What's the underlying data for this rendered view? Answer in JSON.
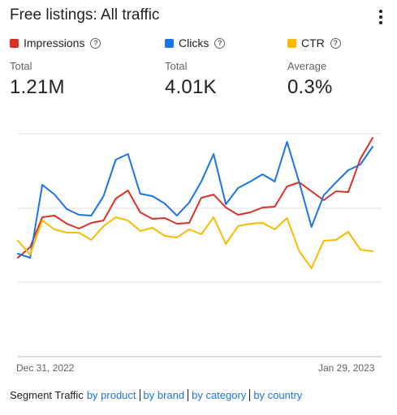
{
  "header": {
    "title": "Free listings: All traffic"
  },
  "metrics": [
    {
      "label": "Impressions",
      "sub": "Total",
      "value": "1.21M",
      "color": "#d93025"
    },
    {
      "label": "Clicks",
      "sub": "Total",
      "value": "4.01K",
      "color": "#1a73e8"
    },
    {
      "label": "CTR",
      "sub": "Average",
      "value": "0.3%",
      "color": "#f9ba00"
    }
  ],
  "chart_data": {
    "type": "line",
    "x_start_label": "Dec 31, 2022",
    "x_end_label": "Jan 29, 2023",
    "grid": true,
    "colors": {
      "impressions": "#d93025",
      "clicks": "#1a73e8",
      "ctr": "#f9ba00"
    },
    "series": [
      {
        "key": "impressions",
        "values": [
          318,
          305,
          268,
          266,
          276,
          282,
          275,
          272,
          245,
          235,
          262,
          270,
          269,
          276,
          275,
          244,
          240,
          256,
          265,
          262,
          256,
          255,
          230,
          225,
          236,
          247,
          236,
          237,
          196,
          170
        ]
      },
      {
        "key": "clicks",
        "values": [
          313,
          318,
          228,
          240,
          258,
          265,
          266,
          242,
          197,
          190,
          239,
          242,
          251,
          266,
          250,
          224,
          190,
          252,
          232,
          224,
          215,
          224,
          175,
          225,
          280,
          241,
          225,
          210,
          203,
          181
        ]
      },
      {
        "key": "ctr",
        "values": [
          297,
          314,
          272,
          283,
          287,
          287,
          296,
          279,
          268,
          272,
          285,
          281,
          291,
          293,
          283,
          289,
          268,
          301,
          279,
          276,
          275,
          283,
          269,
          310,
          331,
          297,
          296,
          286,
          308,
          310
        ]
      }
    ]
  },
  "footer": {
    "lead": "Segment Traffic",
    "links": [
      "by product",
      "by brand",
      "by category",
      "by country"
    ]
  },
  "icons": {
    "help": "help-circle-icon",
    "more": "more-vert-icon"
  }
}
